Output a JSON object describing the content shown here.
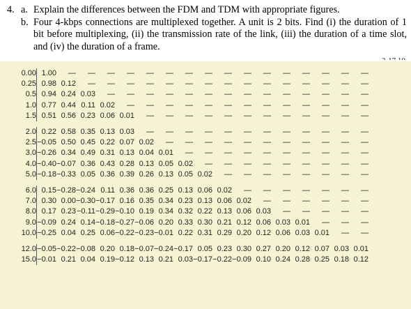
{
  "question": {
    "number": "4.",
    "parts": [
      {
        "label": "a.",
        "text": "Explain the differences between the FDM and TDM with appropriate figures."
      },
      {
        "label": "b.",
        "text": "Four 4-kbps connections are multiplexed together. A unit is 2 bits. Find (i) the duration of 1 bit before multiplexing, (ii) the transmission rate of the link, (iii) the duration of a time slot, and (iv) the duration of a frame."
      }
    ]
  },
  "cutoff_text": "2-17 10",
  "table": {
    "groups": [
      [
        {
          "x": "0.00",
          "vals": [
            "1.00",
            "—",
            "—",
            "—",
            "—",
            "—",
            "—",
            "—",
            "—",
            "—",
            "—",
            "—",
            "—",
            "—",
            "—",
            "—",
            "—"
          ]
        },
        {
          "x": "0.25",
          "vals": [
            "0.98",
            "0.12",
            "—",
            "—",
            "—",
            "—",
            "—",
            "—",
            "—",
            "—",
            "—",
            "—",
            "—",
            "—",
            "—",
            "—",
            "—"
          ]
        },
        {
          "x": "0.5",
          "vals": [
            "0.94",
            "0.24",
            "0.03",
            "—",
            "—",
            "—",
            "—",
            "—",
            "—",
            "—",
            "—",
            "—",
            "—",
            "—",
            "—",
            "—",
            "—"
          ]
        },
        {
          "x": "1.0",
          "vals": [
            "0.77",
            "0.44",
            "0.11",
            "0.02",
            "—",
            "—",
            "—",
            "—",
            "—",
            "—",
            "—",
            "—",
            "—",
            "—",
            "—",
            "—",
            "—"
          ]
        },
        {
          "x": "1.5",
          "vals": [
            "0.51",
            "0.56",
            "0.23",
            "0.06",
            "0.01",
            "—",
            "—",
            "—",
            "—",
            "—",
            "—",
            "—",
            "—",
            "—",
            "—",
            "—",
            "—"
          ]
        }
      ],
      [
        {
          "x": "2.0",
          "vals": [
            "0.22",
            "0.58",
            "0.35",
            "0.13",
            "0.03",
            "—",
            "—",
            "—",
            "—",
            "—",
            "—",
            "—",
            "—",
            "—",
            "—",
            "—",
            "—"
          ]
        },
        {
          "x": "2.5",
          "vals": [
            "−0.05",
            "0.50",
            "0.45",
            "0.22",
            "0.07",
            "0.02",
            "—",
            "—",
            "—",
            "—",
            "—",
            "—",
            "—",
            "—",
            "—",
            "—",
            "—"
          ]
        },
        {
          "x": "3.0",
          "vals": [
            "−0.26",
            "0.34",
            "0.49",
            "0.31",
            "0.13",
            "0.04",
            "0.01",
            "—",
            "—",
            "—",
            "—",
            "—",
            "—",
            "—",
            "—",
            "—",
            "—"
          ]
        },
        {
          "x": "4.0",
          "vals": [
            "−0.40",
            "−0.07",
            "0.36",
            "0.43",
            "0.28",
            "0.13",
            "0.05",
            "0.02",
            "—",
            "—",
            "—",
            "—",
            "—",
            "—",
            "—",
            "—",
            "—"
          ]
        },
        {
          "x": "5.0",
          "vals": [
            "−0.18",
            "−0.33",
            "0.05",
            "0.36",
            "0.39",
            "0.26",
            "0.13",
            "0.05",
            "0.02",
            "—",
            "—",
            "—",
            "—",
            "—",
            "—",
            "—",
            "—"
          ]
        }
      ],
      [
        {
          "x": "6.0",
          "vals": [
            "0.15",
            "−0.28",
            "−0.24",
            "0.11",
            "0.36",
            "0.36",
            "0.25",
            "0.13",
            "0.06",
            "0.02",
            "—",
            "—",
            "—",
            "—",
            "—",
            "—",
            "—"
          ]
        },
        {
          "x": "7.0",
          "vals": [
            "0.30",
            "0.00",
            "−0.30",
            "−0.17",
            "0.16",
            "0.35",
            "0.34",
            "0.23",
            "0.13",
            "0.06",
            "0.02",
            "—",
            "—",
            "—",
            "—",
            "—",
            "—"
          ]
        },
        {
          "x": "8.0",
          "vals": [
            "0.17",
            "0.23",
            "−0.11",
            "−0.29",
            "−0.10",
            "0.19",
            "0.34",
            "0.32",
            "0.22",
            "0.13",
            "0.06",
            "0.03",
            "—",
            "—",
            "—",
            "—",
            "—"
          ]
        },
        {
          "x": "9.0",
          "vals": [
            "−0.09",
            "0.24",
            "0.14",
            "−0.18",
            "−0.27",
            "−0.06",
            "0.20",
            "0.33",
            "0.30",
            "0.21",
            "0.12",
            "0.06",
            "0.03",
            "0.01",
            "—",
            "—",
            "—"
          ]
        },
        {
          "x": "10.0",
          "vals": [
            "−0.25",
            "0.04",
            "0.25",
            "0.06",
            "−0.22",
            "−0.23",
            "−0.01",
            "0.22",
            "0.31",
            "0.29",
            "0.20",
            "0.12",
            "0.06",
            "0.03",
            "0.01",
            "—",
            "—"
          ]
        }
      ],
      [
        {
          "x": "12.0",
          "vals": [
            "−0.05",
            "−0.22",
            "−0.08",
            "0.20",
            "0.18",
            "−0.07",
            "−0.24",
            "−0.17",
            "0.05",
            "0.23",
            "0.30",
            "0.27",
            "0.20",
            "0.12",
            "0.07",
            "0.03",
            "0.01"
          ]
        },
        {
          "x": "15.0",
          "vals": [
            "−0.01",
            "0.21",
            "0.04",
            "0.19",
            "−0.12",
            "0.13",
            "0.21",
            "0.03",
            "−0.17",
            "−0.22",
            "−0.09",
            "0.10",
            "0.24",
            "0.28",
            "0.25",
            "0.18",
            "0.12"
          ]
        }
      ]
    ]
  }
}
